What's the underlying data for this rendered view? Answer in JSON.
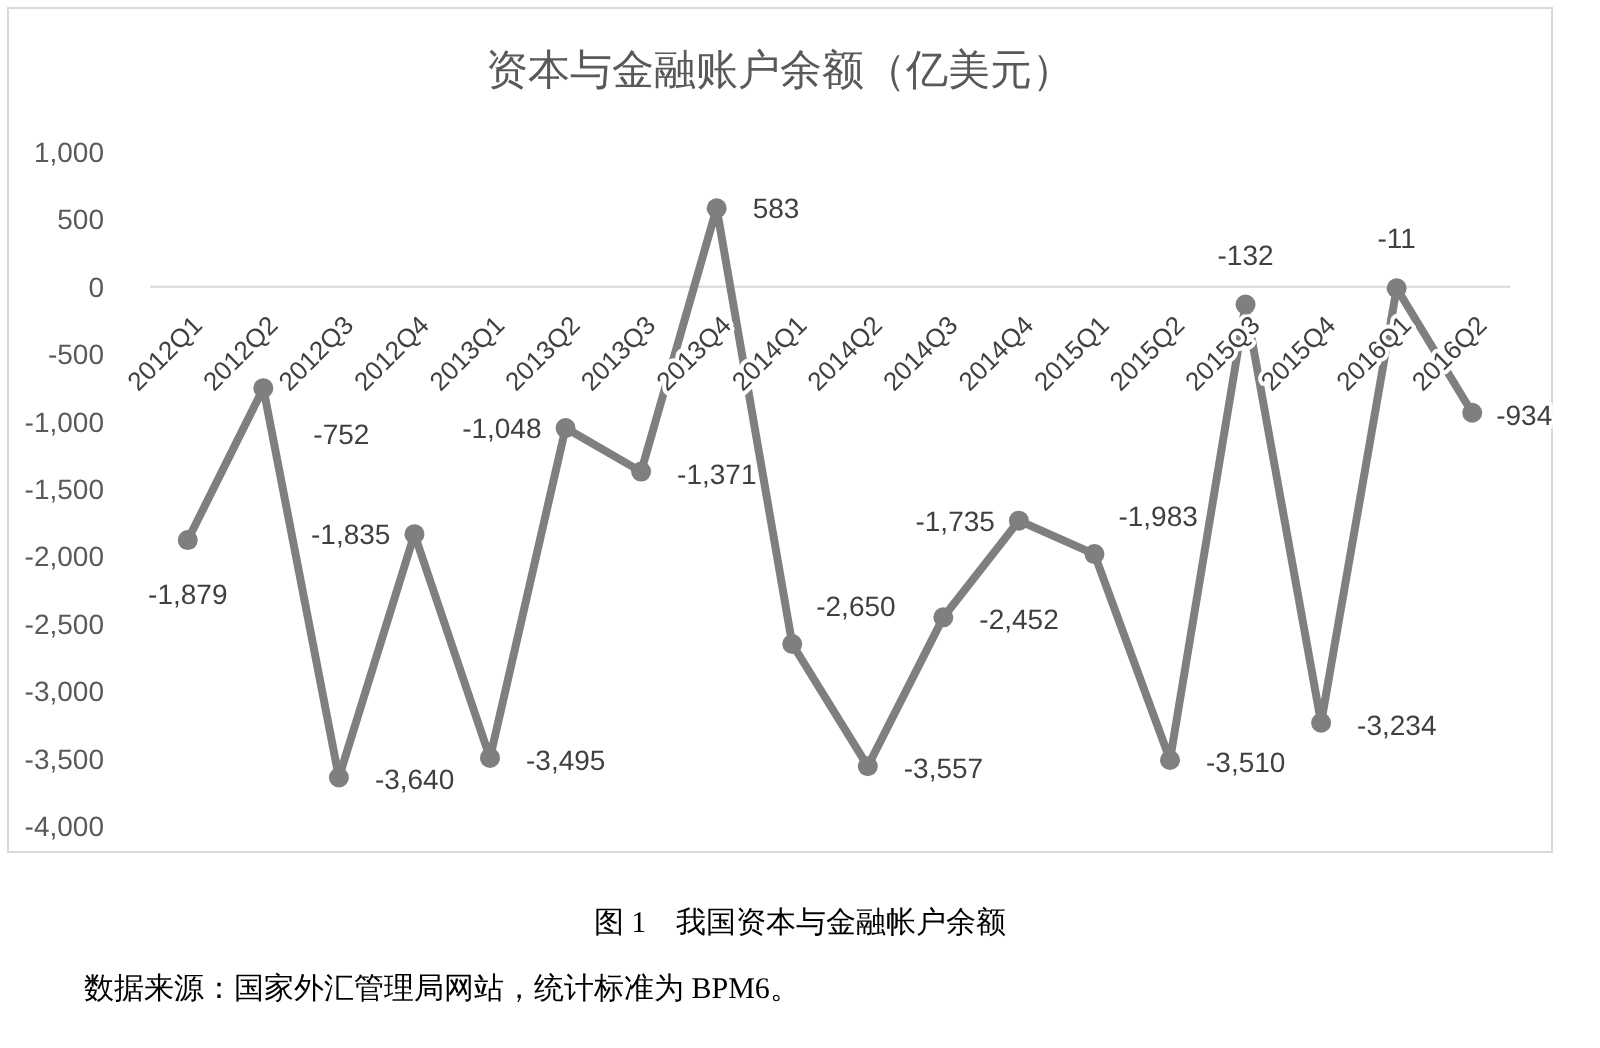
{
  "chart_data": {
    "type": "line",
    "title": "资本与金融账户余额（亿美元）",
    "categories": [
      "2012Q1",
      "2012Q2",
      "2012Q3",
      "2012Q4",
      "2013Q1",
      "2013Q2",
      "2013Q3",
      "2013Q4",
      "2014Q1",
      "2014Q2",
      "2014Q3",
      "2014Q4",
      "2015Q1",
      "2015Q2",
      "2015Q3",
      "2015Q4",
      "2016Q1",
      "2016Q2"
    ],
    "values": [
      -1879,
      -752,
      -3640,
      -1835,
      -3495,
      -1048,
      -1371,
      583,
      -2650,
      -3557,
      -2452,
      -1735,
      -1983,
      -3510,
      -132,
      -3234,
      -11,
      -934
    ],
    "value_labels": [
      "-1,879",
      "-752",
      "-3,640",
      "-1,835",
      "-3,495",
      "-1,048",
      "-1,371",
      "583",
      "-2,650",
      "-3,557",
      "-2,452",
      "-1,735",
      "-1,983",
      "-3,510",
      "-132",
      "-3,234",
      "-11",
      "-934"
    ],
    "color": "#7f7f7f",
    "marker": "circle",
    "line_style": "solid",
    "grid": false,
    "ylim": [
      -4000,
      1000
    ],
    "yticks": [
      {
        "value": 1000,
        "label": "1,000"
      },
      500,
      0,
      -500,
      {
        "value": -1000,
        "label": "-1,000"
      },
      {
        "value": -1500,
        "label": "-1,500"
      },
      {
        "value": -2000,
        "label": "-2,000"
      },
      {
        "value": -2500,
        "label": "-2,500"
      },
      {
        "value": -3000,
        "label": "-3,000"
      },
      {
        "value": -3500,
        "label": "-3,500"
      },
      {
        "value": -4000,
        "label": "-4,000"
      }
    ],
    "annotations": [
      "图 1　我国资本与金融帐户余额",
      "数据来源：国家外汇管理局网站，统计标准为 BPM6。"
    ]
  }
}
